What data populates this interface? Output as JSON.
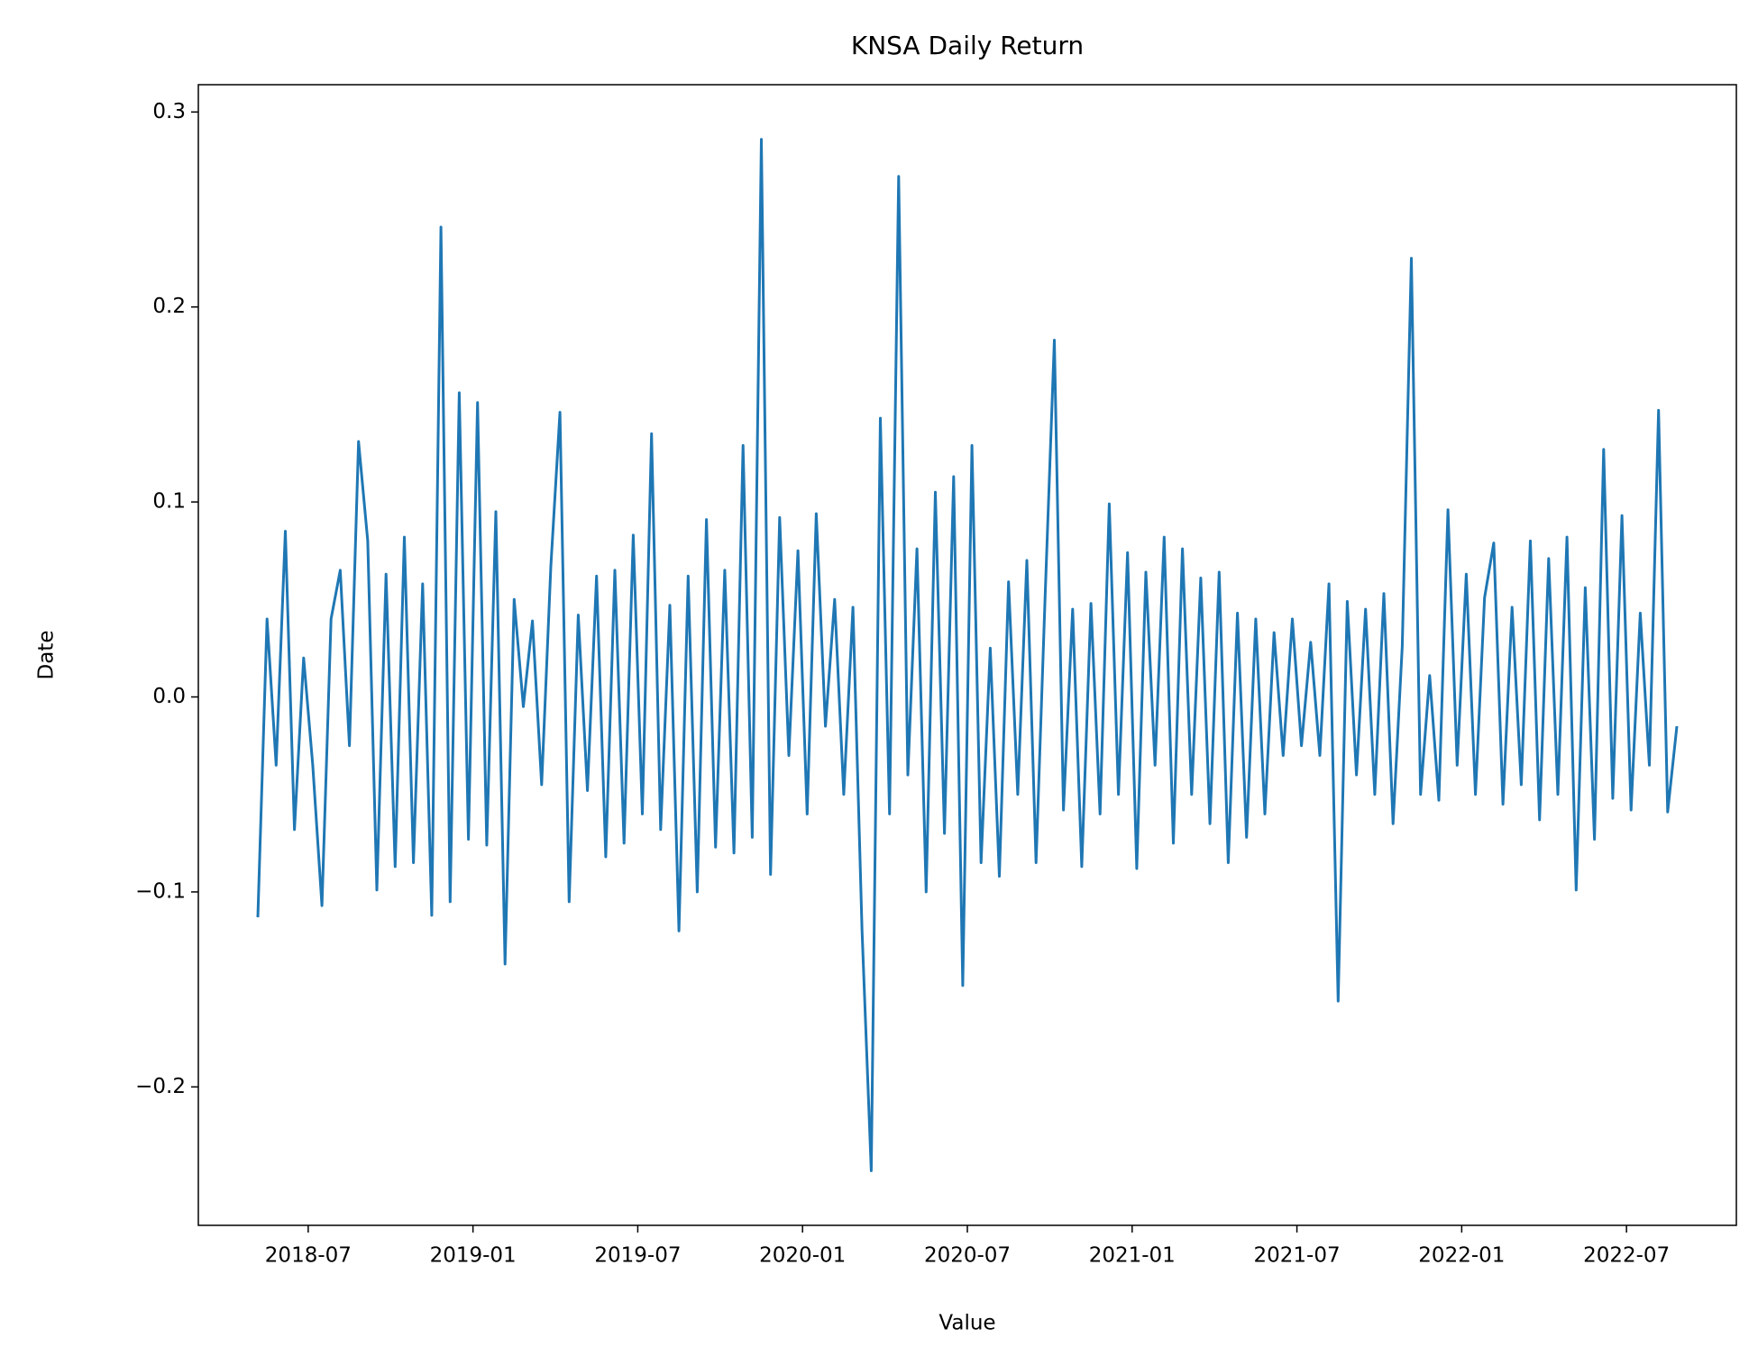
{
  "chart_data": {
    "type": "line",
    "title": "KNSA Daily Return",
    "x_label": "Value",
    "y_label": "Date",
    "color": "#1f77b4",
    "x": [
      "2018-05",
      "2018-05",
      "2018-05",
      "2018-06",
      "2018-06",
      "2018-06",
      "2018-07",
      "2018-07",
      "2018-07",
      "2018-08",
      "2018-08",
      "2018-08",
      "2018-09",
      "2018-09",
      "2018-09",
      "2018-10",
      "2018-10",
      "2018-10",
      "2018-11",
      "2018-11",
      "2018-11",
      "2018-12",
      "2018-12",
      "2018-12",
      "2019-01",
      "2019-01",
      "2019-01",
      "2019-02",
      "2019-02",
      "2019-02",
      "2019-03",
      "2019-03",
      "2019-03",
      "2019-04",
      "2019-04",
      "2019-04",
      "2019-05",
      "2019-05",
      "2019-05",
      "2019-06",
      "2019-06",
      "2019-06",
      "2019-07",
      "2019-07",
      "2019-07",
      "2019-08",
      "2019-08",
      "2019-08",
      "2019-09",
      "2019-09",
      "2019-09",
      "2019-10",
      "2019-10",
      "2019-10",
      "2019-11",
      "2019-11",
      "2019-11",
      "2019-12",
      "2019-12",
      "2019-12",
      "2020-01",
      "2020-01",
      "2020-01",
      "2020-02",
      "2020-02",
      "2020-02",
      "2020-03",
      "2020-03",
      "2020-03",
      "2020-04",
      "2020-04",
      "2020-04",
      "2020-05",
      "2020-05",
      "2020-05",
      "2020-06",
      "2020-06",
      "2020-06",
      "2020-07",
      "2020-07",
      "2020-07",
      "2020-08",
      "2020-08",
      "2020-08",
      "2020-09",
      "2020-09",
      "2020-09",
      "2020-10",
      "2020-10",
      "2020-10",
      "2020-11",
      "2020-11",
      "2020-11",
      "2020-12",
      "2020-12",
      "2020-12",
      "2021-01",
      "2021-01",
      "2021-01",
      "2021-02",
      "2021-02",
      "2021-02",
      "2021-03",
      "2021-03",
      "2021-03",
      "2021-04",
      "2021-04",
      "2021-04",
      "2021-05",
      "2021-05",
      "2021-05",
      "2021-06",
      "2021-06",
      "2021-06",
      "2021-07",
      "2021-07",
      "2021-07",
      "2021-08",
      "2021-08",
      "2021-08",
      "2021-09",
      "2021-09",
      "2021-09",
      "2021-10",
      "2021-10",
      "2021-10",
      "2021-11",
      "2021-11",
      "2021-11",
      "2021-12",
      "2021-12",
      "2021-12",
      "2022-01",
      "2022-01",
      "2022-01",
      "2022-02",
      "2022-02",
      "2022-02",
      "2022-03",
      "2022-03",
      "2022-03",
      "2022-04",
      "2022-04",
      "2022-04",
      "2022-05",
      "2022-05",
      "2022-05",
      "2022-06",
      "2022-06",
      "2022-06",
      "2022-07",
      "2022-07",
      "2022-07",
      "2022-08",
      "2022-08",
      "2022-08"
    ],
    "values": [
      -0.113,
      0.04,
      -0.035,
      0.085,
      -0.068,
      0.02,
      -0.035,
      -0.107,
      0.04,
      0.065,
      -0.025,
      0.131,
      0.08,
      -0.099,
      0.063,
      -0.087,
      0.082,
      -0.085,
      0.058,
      -0.112,
      0.241,
      -0.105,
      0.156,
      -0.073,
      0.151,
      -0.076,
      0.095,
      -0.137,
      0.05,
      -0.005,
      0.039,
      -0.045,
      0.067,
      0.146,
      -0.105,
      0.042,
      -0.048,
      0.062,
      -0.082,
      0.065,
      -0.075,
      0.083,
      -0.06,
      0.135,
      -0.068,
      0.047,
      -0.12,
      0.062,
      -0.1,
      0.091,
      -0.077,
      0.065,
      -0.08,
      0.129,
      -0.072,
      0.286,
      -0.091,
      0.092,
      -0.03,
      0.075,
      -0.06,
      0.094,
      -0.015,
      0.05,
      -0.05,
      0.046,
      -0.12,
      -0.243,
      0.143,
      -0.06,
      0.267,
      -0.04,
      0.076,
      -0.1,
      0.105,
      -0.07,
      0.113,
      -0.148,
      0.129,
      -0.085,
      0.025,
      -0.092,
      0.059,
      -0.05,
      0.07,
      -0.085,
      0.052,
      0.183,
      -0.058,
      0.045,
      -0.087,
      0.048,
      -0.06,
      0.099,
      -0.05,
      0.074,
      -0.088,
      0.064,
      -0.035,
      0.082,
      -0.075,
      0.076,
      -0.05,
      0.061,
      -0.065,
      0.064,
      -0.085,
      0.043,
      -0.072,
      0.04,
      -0.06,
      0.033,
      -0.03,
      0.04,
      -0.025,
      0.028,
      -0.03,
      0.058,
      -0.156,
      0.049,
      -0.04,
      0.045,
      -0.05,
      0.053,
      -0.065,
      0.026,
      0.225,
      -0.05,
      0.011,
      -0.053,
      0.096,
      -0.035,
      0.063,
      -0.05,
      0.051,
      0.079,
      -0.055,
      0.046,
      -0.045,
      0.08,
      -0.063,
      0.071,
      -0.05,
      0.082,
      -0.099,
      0.056,
      -0.073,
      0.127,
      -0.052,
      0.093,
      -0.058,
      0.043,
      -0.035,
      0.147,
      -0.059,
      -0.015
    ],
    "xlim": [
      "2018-03",
      "2022-11"
    ],
    "xticks": [
      "2018-07",
      "2019-01",
      "2019-07",
      "2020-01",
      "2020-07",
      "2021-01",
      "2021-07",
      "2022-01",
      "2022-07"
    ],
    "ylim": [
      -0.271,
      0.314
    ],
    "yticks": [
      {
        "value": -0.2,
        "label": "−0.2"
      },
      {
        "value": -0.1,
        "label": "−0.1"
      },
      {
        "value": 0.0,
        "label": "0.0"
      },
      0.1,
      0.2,
      0.3
    ]
  }
}
